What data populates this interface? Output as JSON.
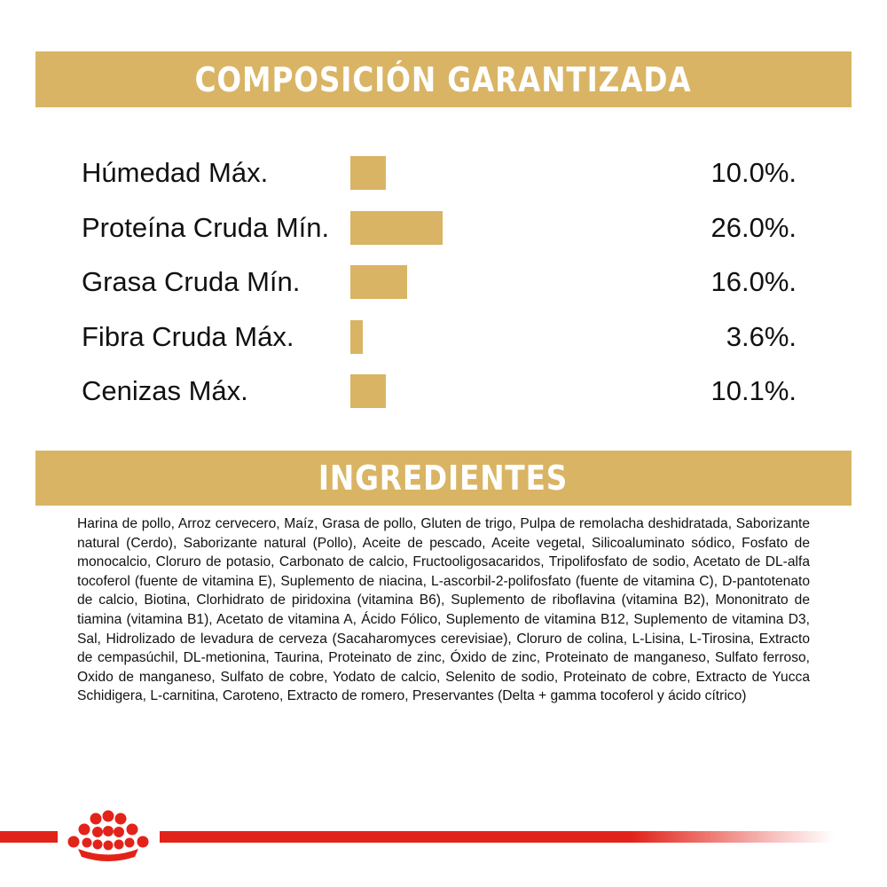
{
  "sections": {
    "composition_title": "COMPOSICIÓN GARANTIZADA",
    "ingredients_title": "INGREDIENTES"
  },
  "composition": [
    {
      "label": "Húmedad Máx.",
      "value": "10.0%.",
      "percent": 10.0
    },
    {
      "label": "Proteína Cruda Mín.",
      "value": "26.0%.",
      "percent": 26.0
    },
    {
      "label": "Grasa Cruda Mín.",
      "value": "16.0%.",
      "percent": 16.0
    },
    {
      "label": "Fibra Cruda Máx.",
      "value": "3.6%.",
      "percent": 3.6
    },
    {
      "label": "Cenizas Máx.",
      "value": "10.1%.",
      "percent": 10.1
    }
  ],
  "ingredients_text": "Harina de pollo, Arroz cervecero, Maíz, Grasa de pollo, Gluten de trigo, Pulpa de remolacha deshidratada, Saborizante natural (Cerdo), Saborizante natural (Pollo), Aceite de pescado, Aceite vegetal, Silicoaluminato sódico, Fosfato de monocalcio, Cloruro de potasio, Carbonato de calcio, Fructooligosacaridos, Tripolifosfato de sodio, Acetato de DL-alfa tocoferol (fuente de vitamina E), Suplemento de niacina, L-ascorbil-2-polifosfato (fuente de vitamina C), D-pantotenato de calcio, Biotina, Clorhidrato de piridoxina (vitamina B6), Suplemento de riboflavina (vitamina B2), Mononitrato de tiamina (vitamina B1), Acetato de vitamina A, Ácido Fólico, Suplemento de vitamina B12, Suplemento de vitamina D3, Sal, Hidrolizado de levadura de cerveza (Sacaharomyces cerevisiae), Cloruro de colina, L-Lisina, L-Tirosina, Extracto de cempasúchil, DL-metionina, Taurina, Proteinato de zinc, Óxido de zinc, Proteinato de manganeso, Sulfato ferroso, Oxido de manganeso, Sulfato de cobre, Yodato de calcio, Selenito de sodio, Proteinato de cobre, Extracto de Yucca Schidigera, L-carnitina, Caroteno, Extracto de romero, Preservantes (Delta + gamma tocoferol y ácido cítrico)",
  "colors": {
    "gold": "#d9b464",
    "brand_red": "#e2231a"
  },
  "logo": {
    "icon": "crown-icon"
  }
}
